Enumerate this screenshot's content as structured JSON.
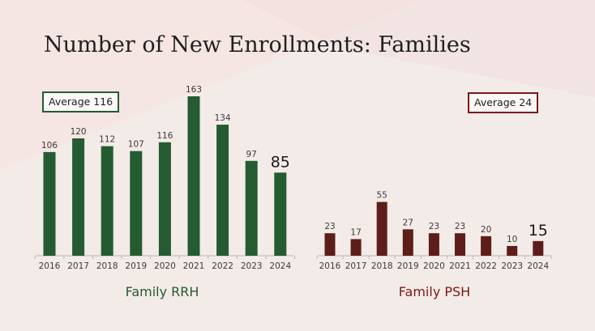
{
  "slide": {
    "title": "Number of New Enrollments: Families"
  },
  "colors": {
    "rrh": "#255b30",
    "psh": "#5e1d18",
    "rrh_title": "#255b30",
    "psh_title": "#7a1a16",
    "axis": "#bdb5b2",
    "label": "#3a3a3a"
  },
  "chart_data": [
    {
      "type": "bar",
      "title": "Family RRH",
      "average_label": "Average 116",
      "categories": [
        "2016",
        "2017",
        "2018",
        "2019",
        "2020",
        "2021",
        "2022",
        "2023",
        "2024"
      ],
      "values": [
        106,
        120,
        112,
        107,
        116,
        163,
        134,
        97,
        85
      ],
      "data_labels": [
        "106",
        "120",
        "112",
        "107",
        "116",
        "163",
        "134",
        "97",
        "85"
      ],
      "highlight_last": true,
      "ylim": [
        0,
        163
      ],
      "xlabel": "",
      "ylabel": "",
      "grid": false
    },
    {
      "type": "bar",
      "title": "Family PSH",
      "average_label": "Average 24",
      "categories": [
        "2016",
        "2017",
        "2018",
        "2019",
        "2020",
        "2021",
        "2022",
        "2023",
        "2024"
      ],
      "values": [
        23,
        17,
        55,
        27,
        23,
        23,
        20,
        10,
        15
      ],
      "data_labels": [
        "23",
        "17",
        "55",
        "27",
        "23",
        "23",
        "20",
        "10",
        "15"
      ],
      "highlight_last": true,
      "ylim": [
        0,
        163
      ],
      "xlabel": "",
      "ylabel": "",
      "grid": false
    }
  ]
}
